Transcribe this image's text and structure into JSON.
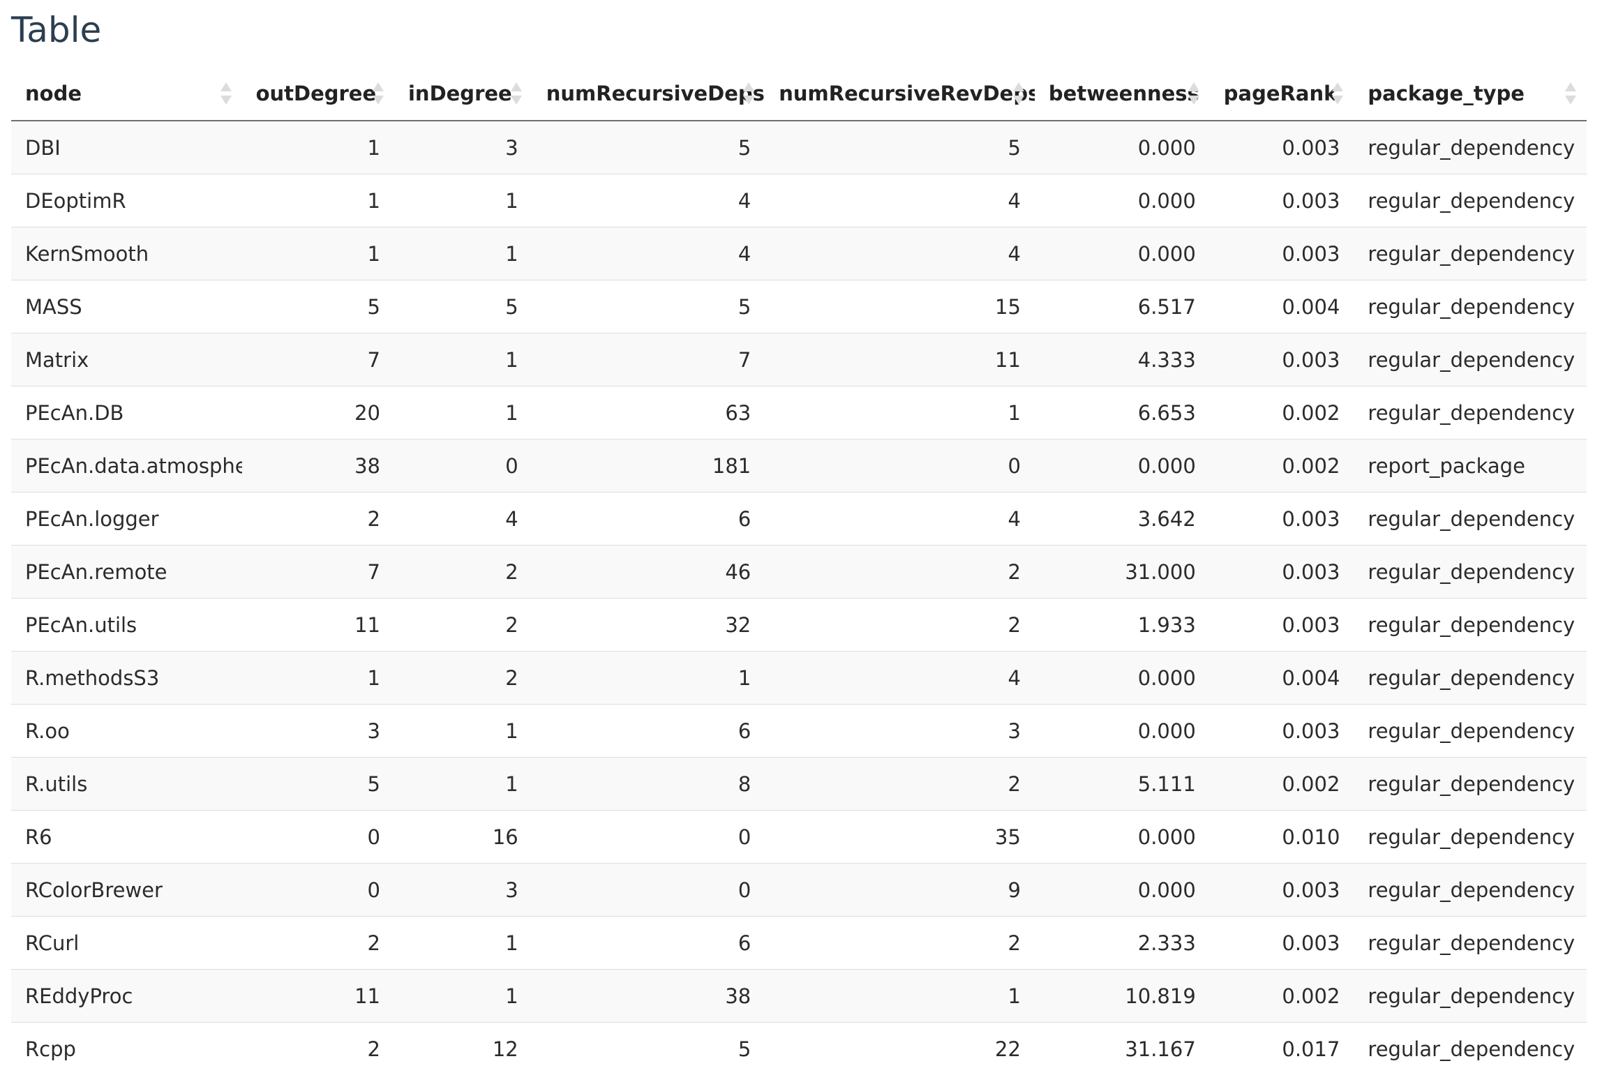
{
  "title": "Table",
  "table": {
    "columns": [
      {
        "label": "node",
        "align": "txt"
      },
      {
        "label": "outDegree",
        "align": "num"
      },
      {
        "label": "inDegree",
        "align": "num"
      },
      {
        "label": "numRecursiveDeps",
        "align": "num"
      },
      {
        "label": "numRecursiveRevDeps",
        "align": "num"
      },
      {
        "label": "betweenness",
        "align": "num"
      },
      {
        "label": "pageRank",
        "align": "num"
      },
      {
        "label": "package_type",
        "align": "txt"
      }
    ],
    "rows": [
      [
        "DBI",
        "1",
        "3",
        "5",
        "5",
        "0.000",
        "0.003",
        "regular_dependency"
      ],
      [
        "DEoptimR",
        "1",
        "1",
        "4",
        "4",
        "0.000",
        "0.003",
        "regular_dependency"
      ],
      [
        "KernSmooth",
        "1",
        "1",
        "4",
        "4",
        "0.000",
        "0.003",
        "regular_dependency"
      ],
      [
        "MASS",
        "5",
        "5",
        "5",
        "15",
        "6.517",
        "0.004",
        "regular_dependency"
      ],
      [
        "Matrix",
        "7",
        "1",
        "7",
        "11",
        "4.333",
        "0.003",
        "regular_dependency"
      ],
      [
        "PEcAn.DB",
        "20",
        "1",
        "63",
        "1",
        "6.653",
        "0.002",
        "regular_dependency"
      ],
      [
        "PEcAn.data.atmosphere",
        "38",
        "0",
        "181",
        "0",
        "0.000",
        "0.002",
        "report_package"
      ],
      [
        "PEcAn.logger",
        "2",
        "4",
        "6",
        "4",
        "3.642",
        "0.003",
        "regular_dependency"
      ],
      [
        "PEcAn.remote",
        "7",
        "2",
        "46",
        "2",
        "31.000",
        "0.003",
        "regular_dependency"
      ],
      [
        "PEcAn.utils",
        "11",
        "2",
        "32",
        "2",
        "1.933",
        "0.003",
        "regular_dependency"
      ],
      [
        "R.methodsS3",
        "1",
        "2",
        "1",
        "4",
        "0.000",
        "0.004",
        "regular_dependency"
      ],
      [
        "R.oo",
        "3",
        "1",
        "6",
        "3",
        "0.000",
        "0.003",
        "regular_dependency"
      ],
      [
        "R.utils",
        "5",
        "1",
        "8",
        "2",
        "5.111",
        "0.002",
        "regular_dependency"
      ],
      [
        "R6",
        "0",
        "16",
        "0",
        "35",
        "0.000",
        "0.010",
        "regular_dependency"
      ],
      [
        "RColorBrewer",
        "0",
        "3",
        "0",
        "9",
        "0.000",
        "0.003",
        "regular_dependency"
      ],
      [
        "RCurl",
        "2",
        "1",
        "6",
        "2",
        "2.333",
        "0.003",
        "regular_dependency"
      ],
      [
        "REddyProc",
        "11",
        "1",
        "38",
        "1",
        "10.819",
        "0.002",
        "regular_dependency"
      ],
      [
        "Rcpp",
        "2",
        "12",
        "5",
        "22",
        "31.167",
        "0.017",
        "regular_dependency"
      ]
    ]
  },
  "icons": {
    "sort": "sort-both-icon"
  },
  "colors": {
    "title": "#2c3e50",
    "stripe": "#f9f9f9",
    "sort_icon": "#dcdcdc"
  }
}
